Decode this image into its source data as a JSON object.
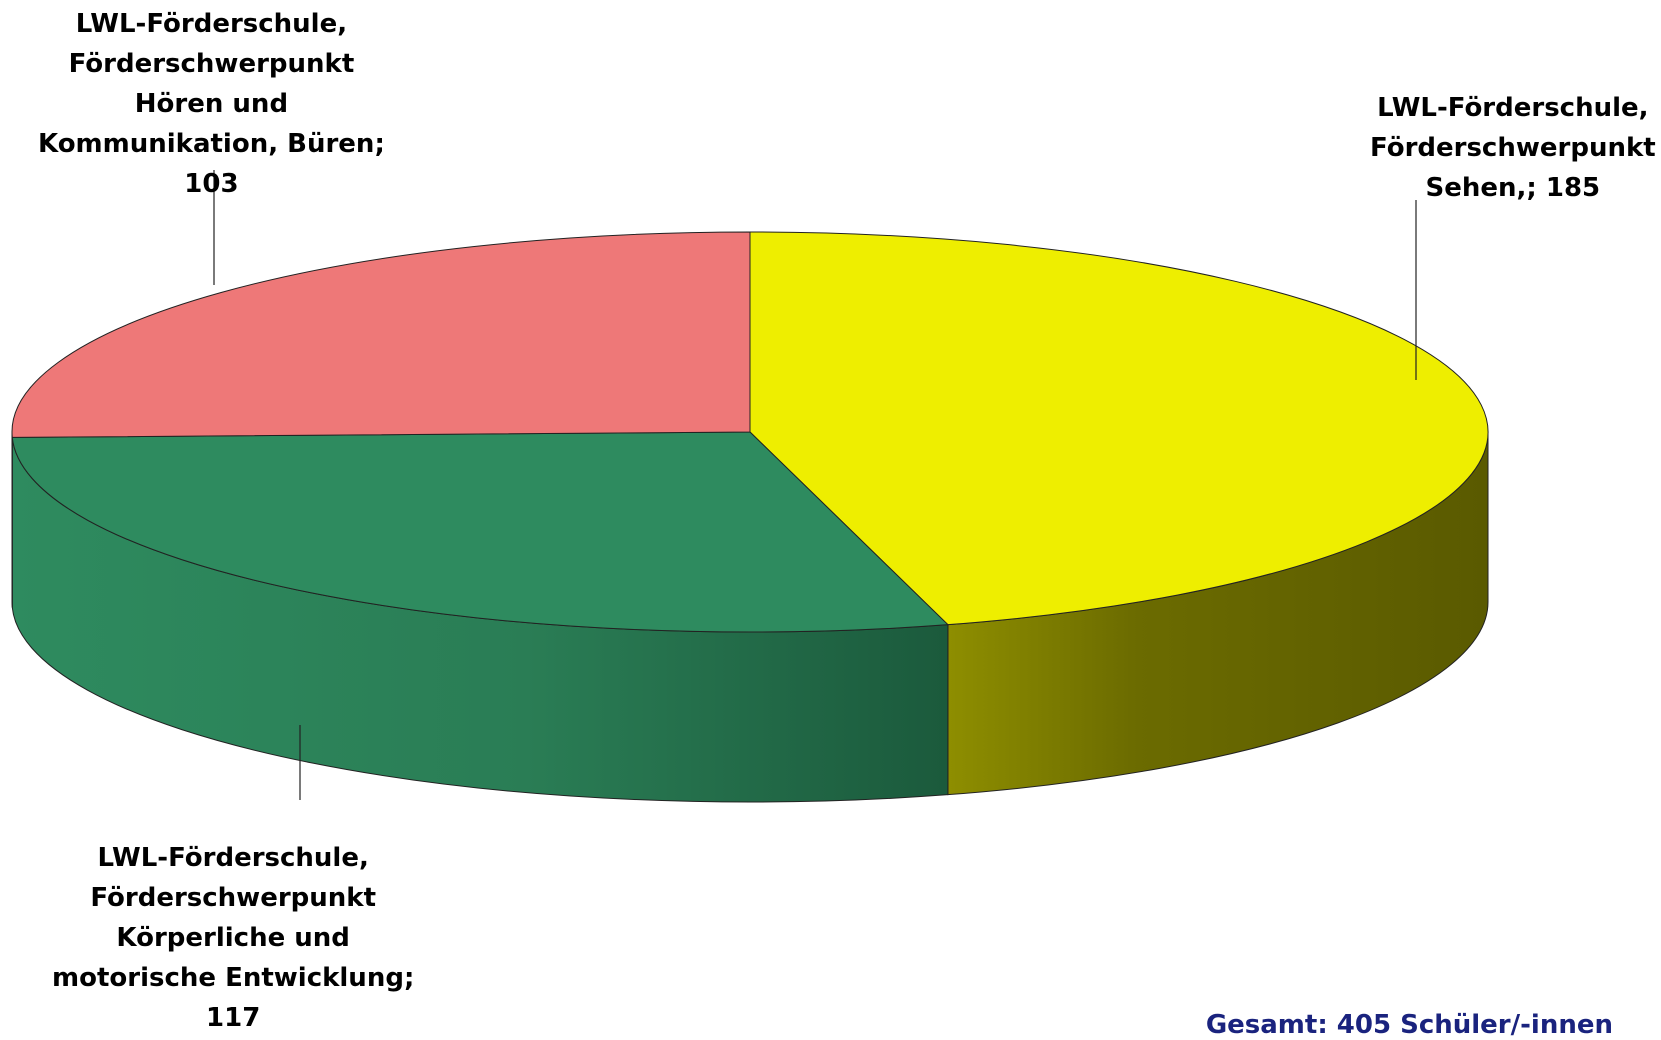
{
  "chart_data": {
    "type": "pie",
    "title": "",
    "slices": [
      {
        "label_lines": [
          "LWL-Förderschule,",
          "Förderschwerpunkt",
          "Sehen,; 185"
        ],
        "value": 185,
        "color": "#eeee00",
        "side_color": "#6b6b00"
      },
      {
        "label_lines": [
          "LWL-Förderschule,",
          "Förderschwerpunkt",
          "Körperliche und",
          "motorische Entwicklung;",
          "117"
        ],
        "value": 117,
        "color": "#2e8b5f",
        "side_color": "#1e5c3e"
      },
      {
        "label_lines": [
          "LWL-Förderschule,",
          "Förderschwerpunkt",
          "Hören und",
          "Kommunikation, Büren;",
          "103"
        ],
        "value": 103,
        "color": "#ee7878",
        "side_color": "#b85858"
      }
    ],
    "total_text": "Gesamt: 405 Schüler/-innen"
  }
}
